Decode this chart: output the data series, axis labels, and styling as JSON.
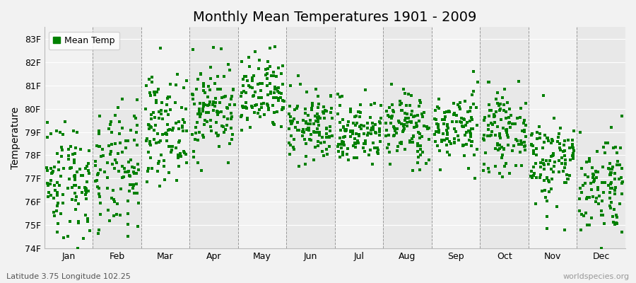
{
  "title": "Monthly Mean Temperatures 1901 - 2009",
  "ylabel": "Temperature",
  "subtitle": "Latitude 3.75 Longitude 102.25",
  "watermark": "worldspecies.org",
  "ylim": [
    74,
    83.5
  ],
  "yticks": [
    74,
    75,
    76,
    77,
    78,
    79,
    80,
    81,
    82,
    83
  ],
  "ytick_labels": [
    "74F",
    "75F",
    "76F",
    "77F",
    "78F",
    "79F",
    "80F",
    "81F",
    "82F",
    "83F"
  ],
  "months": [
    "Jan",
    "Feb",
    "Mar",
    "Apr",
    "May",
    "Jun",
    "Jul",
    "Aug",
    "Sep",
    "Oct",
    "Nov",
    "Dec"
  ],
  "dot_color": "#008000",
  "bg_color": "#f2f2f2",
  "band_colors": [
    "#f2f2f2",
    "#e8e8e8"
  ],
  "legend_label": "Mean Temp",
  "n_years": 109,
  "seed": 42,
  "monthly_means": [
    77.0,
    77.2,
    79.2,
    80.0,
    80.5,
    79.2,
    79.0,
    79.2,
    79.2,
    79.0,
    77.8,
    76.8
  ],
  "monthly_stds": [
    1.3,
    1.35,
    1.1,
    1.0,
    0.85,
    0.75,
    0.7,
    0.8,
    0.75,
    0.8,
    1.0,
    1.1
  ],
  "title_fontsize": 14,
  "axis_label_fontsize": 10,
  "tick_fontsize": 9,
  "dot_size": 5,
  "vline_color": "#999999",
  "hline_color": "#ffffff",
  "spine_color": "#bbbbbb"
}
